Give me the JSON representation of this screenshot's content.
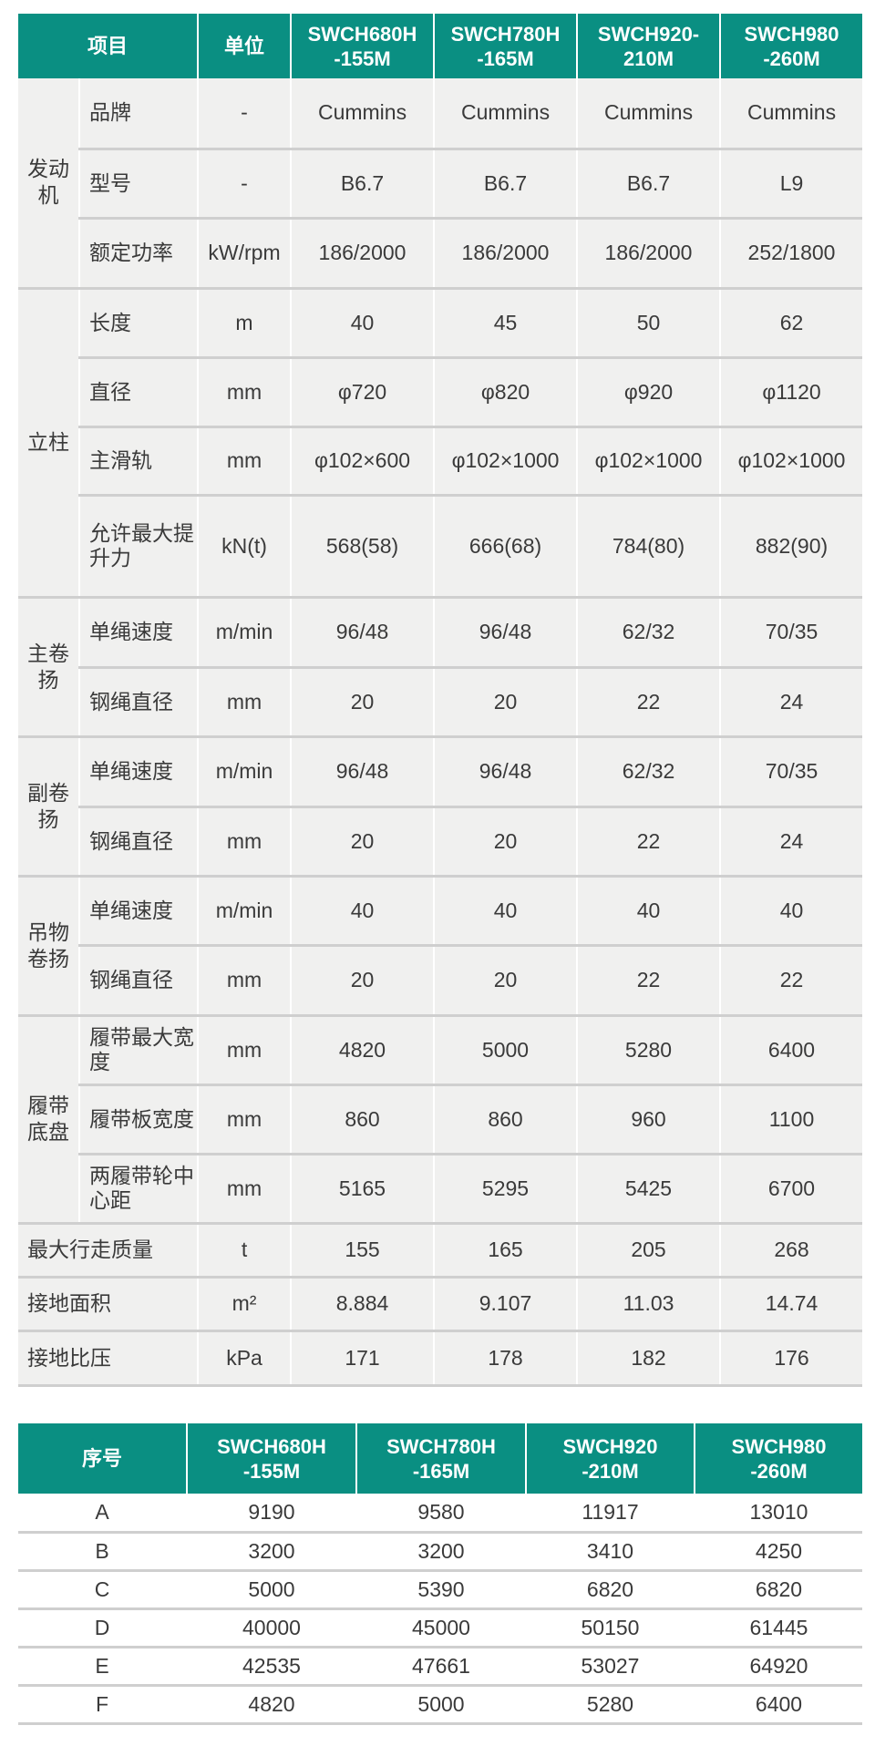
{
  "spec_table": {
    "header": {
      "item": "项目",
      "unit": "单位",
      "models": [
        "SWCH680H\n-155M",
        "SWCH780H\n-165M",
        "SWCH920-\n210M",
        "SWCH980\n-260M"
      ]
    },
    "groups": [
      {
        "label": "发动机",
        "rows": [
          {
            "item": "品牌",
            "unit": "-",
            "values": [
              "Cummins",
              "Cummins",
              "Cummins",
              "Cummins"
            ]
          },
          {
            "item": "型号",
            "unit": "-",
            "values": [
              "B6.7",
              "B6.7",
              "B6.7",
              "L9"
            ]
          },
          {
            "item": "额定功率",
            "unit": "kW/rpm",
            "values": [
              "186/2000",
              "186/2000",
              "186/2000",
              "252/1800"
            ]
          }
        ]
      },
      {
        "label": "立柱",
        "rows": [
          {
            "item": "长度",
            "unit": "m",
            "values": [
              "40",
              "45",
              "50",
              "62"
            ]
          },
          {
            "item": "直径",
            "unit": "mm",
            "values": [
              "φ720",
              "φ820",
              "φ920",
              "φ1120"
            ]
          },
          {
            "item": "主滑轨",
            "unit": "mm",
            "values": [
              "φ102×600",
              "φ102×1000",
              "φ102×1000",
              "φ102×1000"
            ]
          },
          {
            "item": "允许最大提升力",
            "unit": "kN(t)",
            "values": [
              "568(58)",
              "666(68)",
              "784(80)",
              "882(90)"
            ]
          }
        ]
      },
      {
        "label": "主卷扬",
        "rows": [
          {
            "item": "单绳速度",
            "unit": "m/min",
            "values": [
              "96/48",
              "96/48",
              "62/32",
              "70/35"
            ]
          },
          {
            "item": "钢绳直径",
            "unit": "mm",
            "values": [
              "20",
              "20",
              "22",
              "24"
            ]
          }
        ]
      },
      {
        "label": "副卷扬",
        "rows": [
          {
            "item": "单绳速度",
            "unit": "m/min",
            "values": [
              "96/48",
              "96/48",
              "62/32",
              "70/35"
            ]
          },
          {
            "item": "钢绳直径",
            "unit": "mm",
            "values": [
              "20",
              "20",
              "22",
              "24"
            ]
          }
        ]
      },
      {
        "label": "吊物卷扬",
        "rows": [
          {
            "item": "单绳速度",
            "unit": "m/min",
            "values": [
              "40",
              "40",
              "40",
              "40"
            ]
          },
          {
            "item": "钢绳直径",
            "unit": "mm",
            "values": [
              "20",
              "20",
              "22",
              "22"
            ]
          }
        ]
      },
      {
        "label": "履带底盘",
        "rows": [
          {
            "item": "履带最大宽度",
            "unit": "mm",
            "values": [
              "4820",
              "5000",
              "5280",
              "6400"
            ]
          },
          {
            "item": "履带板宽度",
            "unit": "mm",
            "values": [
              "860",
              "860",
              "960",
              "1100"
            ]
          },
          {
            "item": "两履带轮中心距",
            "unit": "mm",
            "values": [
              "5165",
              "5295",
              "5425",
              "6700"
            ]
          }
        ]
      }
    ],
    "standalone_rows": [
      {
        "item": "最大行走质量",
        "unit": "t",
        "values": [
          "155",
          "165",
          "205",
          "268"
        ]
      },
      {
        "item": "接地面积",
        "unit": "m²",
        "values": [
          "8.884",
          "9.107",
          "11.03",
          "14.74"
        ]
      },
      {
        "item": "接地比压",
        "unit": "kPa",
        "values": [
          "171",
          "178",
          "182",
          "176"
        ]
      }
    ]
  },
  "dimension_table": {
    "header": {
      "index": "序号",
      "models": [
        "SWCH680H\n-155M",
        "SWCH780H\n-165M",
        "SWCH920\n-210M",
        "SWCH980\n-260M"
      ]
    },
    "rows": [
      {
        "index": "A",
        "values": [
          "9190",
          "9580",
          "11917",
          "13010"
        ]
      },
      {
        "index": "B",
        "values": [
          "3200",
          "3200",
          "3410",
          "4250"
        ]
      },
      {
        "index": "C",
        "values": [
          "5000",
          "5390",
          "6820",
          "6820"
        ]
      },
      {
        "index": "D",
        "values": [
          "40000",
          "45000",
          "50150",
          "61445"
        ]
      },
      {
        "index": "E",
        "values": [
          "42535",
          "47661",
          "53027",
          "64920"
        ]
      },
      {
        "index": "F",
        "values": [
          "4820",
          "5000",
          "5280",
          "6400"
        ]
      }
    ]
  },
  "colors": {
    "header_bg": "#0a8f82",
    "row_bg": "#f0f0ef",
    "divider": "#cfcfcf"
  }
}
